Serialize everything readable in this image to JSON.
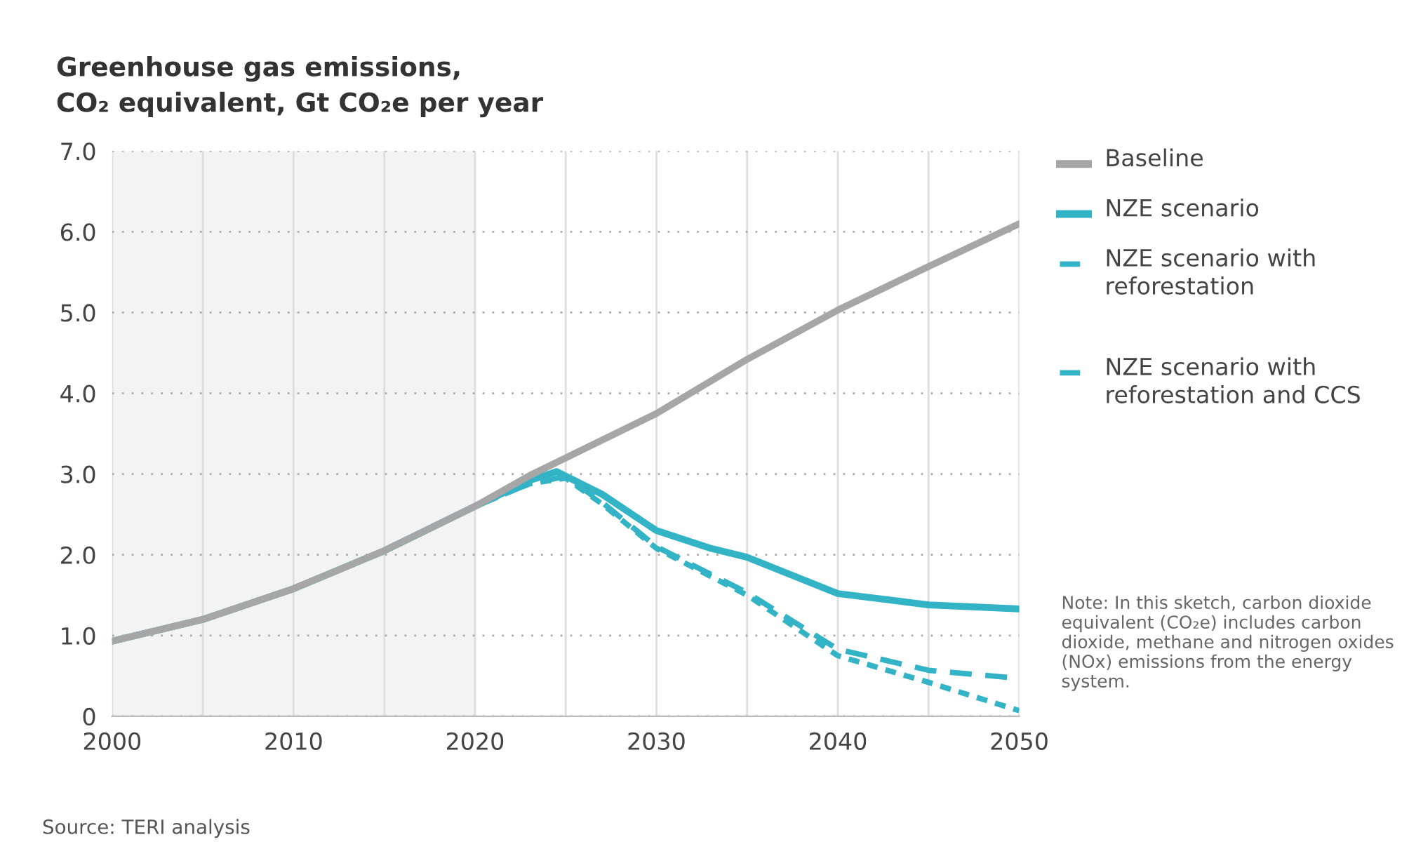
{
  "chart_data": {
    "type": "line",
    "title": "Greenhouse gas emissions,\nCO₂ equivalent, Gt CO₂e per year",
    "series": [
      {
        "name": "Baseline",
        "color": "#a6a6a6",
        "line_style": "solid",
        "x": [
          2000,
          2005,
          2010,
          2015,
          2020,
          2023,
          2025,
          2030,
          2035,
          2040,
          2045,
          2050
        ],
        "values": [
          0.93,
          1.2,
          1.58,
          2.05,
          2.6,
          2.98,
          3.2,
          3.75,
          4.42,
          5.03,
          5.57,
          6.1
        ]
      },
      {
        "name": "NZE scenario",
        "color": "#33b3c6",
        "line_style": "solid",
        "x": [
          2000,
          2005,
          2010,
          2015,
          2020,
          2023,
          2024.5,
          2027,
          2030,
          2033,
          2035,
          2040,
          2045,
          2050
        ],
        "values": [
          0.93,
          1.2,
          1.58,
          2.05,
          2.6,
          2.92,
          3.03,
          2.75,
          2.3,
          2.08,
          1.97,
          1.52,
          1.38,
          1.33
        ]
      },
      {
        "name": "NZE scenario with reforestation",
        "color": "#33b3c6",
        "line_style": "dashed",
        "x": [
          2000,
          2005,
          2010,
          2015,
          2020,
          2023,
          2025,
          2027,
          2030,
          2035,
          2040,
          2045,
          2050
        ],
        "values": [
          0.93,
          1.2,
          1.58,
          2.05,
          2.6,
          2.88,
          2.97,
          2.65,
          2.1,
          1.53,
          0.83,
          0.57,
          0.47
        ]
      },
      {
        "name": "NZE scenario with reforestation and CCS",
        "color": "#33b3c6",
        "line_style": "dotted",
        "x": [
          2000,
          2005,
          2010,
          2015,
          2020,
          2023,
          2025,
          2027,
          2030,
          2035,
          2040,
          2045,
          2050
        ],
        "values": [
          0.93,
          1.2,
          1.58,
          2.05,
          2.6,
          2.88,
          2.95,
          2.63,
          2.08,
          1.5,
          0.75,
          0.42,
          0.07
        ]
      }
    ],
    "xlim": [
      2000,
      2050
    ],
    "xticks": [
      2000,
      {
        "value": 2005,
        "label": null
      },
      2010,
      {
        "value": 2015,
        "label": null
      },
      2020,
      {
        "value": 2025,
        "label": null
      },
      2030,
      {
        "value": 2035,
        "label": null
      },
      2040,
      {
        "value": 2045,
        "label": null
      },
      2050
    ],
    "ylim": [
      0,
      7
    ],
    "yticks": [
      0,
      {
        "value": 1,
        "label": "1.0"
      },
      {
        "value": 2,
        "label": "2.0"
      },
      {
        "value": 3,
        "label": "3.0"
      },
      {
        "value": 4,
        "label": "4.0"
      },
      {
        "value": 5,
        "label": "5.0"
      },
      {
        "value": 6,
        "label": "6.0"
      },
      {
        "value": 7,
        "label": "7.0"
      }
    ],
    "bands": [
      {
        "axis": "x",
        "from": 2000,
        "to": 2020,
        "color": "#f3f3f3"
      }
    ],
    "grid": true,
    "legend": "right",
    "marker": "none",
    "annotations": [
      "Note: In this sketch, carbon dioxide equivalent (CO₂e) includes carbon dioxide, methane and nitrogen oxides (NOx) emissions from the energy system.",
      "Source: TERI analysis"
    ]
  }
}
